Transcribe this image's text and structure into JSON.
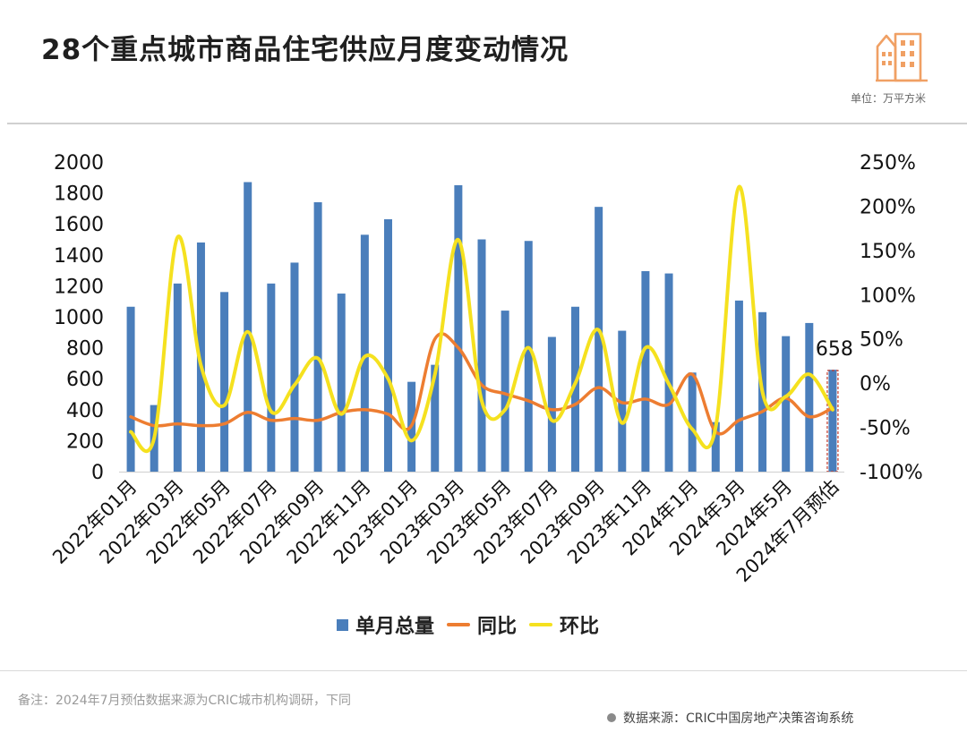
{
  "header": {
    "title": "28个重点城市商品住宅供应月度变动情况",
    "unit": "单位：万平方米"
  },
  "footer": {
    "note": "备注：2024年7月预估数据来源为CRIC城市机构调研，下同",
    "source": "数据来源：CRIC中国房地产决策咨询系统"
  },
  "colors": {
    "bar": "#4a7ebb",
    "yoy": "#ed7d31",
    "mom": "#f5e11f",
    "highlight": "#c0392b",
    "logo": "#f0a064"
  },
  "icons": {
    "logo": "buildings-icon"
  },
  "chart_data": {
    "type": "bar",
    "title": "28个重点城市商品住宅供应月度变动情况",
    "categories": [
      "2022年01月",
      "2022年02月",
      "2022年03月",
      "2022年04月",
      "2022年05月",
      "2022年06月",
      "2022年07月",
      "2022年08月",
      "2022年09月",
      "2022年10月",
      "2022年11月",
      "2022年12月",
      "2023年01月",
      "2023年02月",
      "2023年03月",
      "2023年04月",
      "2023年05月",
      "2023年06月",
      "2023年07月",
      "2023年08月",
      "2023年09月",
      "2023年10月",
      "2023年11月",
      "2023年12月",
      "2024年1月",
      "2024年2月",
      "2024年3月",
      "2024年4月",
      "2024年5月",
      "2024年6月",
      "2024年7月预估"
    ],
    "x_tick_labels": [
      "2022年01月",
      "2022年03月",
      "2022年05月",
      "2022年07月",
      "2022年09月",
      "2022年11月",
      "2023年01月",
      "2023年03月",
      "2023年05月",
      "2023年07月",
      "2023年09月",
      "2023年11月",
      "2024年1月",
      "2024年3月",
      "2024年5月",
      "2024年7月预估"
    ],
    "series": [
      {
        "name": "单月总量",
        "type": "bar",
        "axis": "left",
        "values": [
          1065,
          430,
          1215,
          1480,
          1160,
          1870,
          1215,
          1350,
          1740,
          1150,
          1530,
          1630,
          580,
          690,
          1850,
          1500,
          1040,
          1490,
          870,
          1065,
          1710,
          910,
          1295,
          1280,
          640,
          320,
          1105,
          1030,
          875,
          960,
          658
        ]
      },
      {
        "name": "同比",
        "type": "line",
        "axis": "right",
        "values": [
          -38,
          -48,
          -46,
          -48,
          -46,
          -33,
          -42,
          -40,
          -42,
          -33,
          -30,
          -35,
          -48,
          50,
          40,
          -2,
          -12,
          -20,
          -30,
          -24,
          -5,
          -22,
          -18,
          -24,
          10,
          -55,
          -42,
          -32,
          -17,
          -38,
          -28
        ]
      },
      {
        "name": "环比",
        "type": "line",
        "axis": "right",
        "values": [
          -55,
          -62,
          165,
          20,
          -25,
          58,
          -32,
          -2,
          28,
          -35,
          30,
          5,
          -65,
          10,
          162,
          -20,
          -30,
          40,
          -42,
          0,
          60,
          -45,
          40,
          -1,
          -52,
          -50,
          222,
          -10,
          -15,
          10,
          -30
        ]
      }
    ],
    "yleft_ticks": [
      "0",
      "200",
      "400",
      "600",
      "800",
      "1000",
      "1200",
      "1400",
      "1600",
      "1800",
      "2000"
    ],
    "yright_ticks": [
      "-100%",
      "-50%",
      "0%",
      "50%",
      "100%",
      "150%",
      "200%",
      "250%"
    ],
    "ylim_left": [
      0,
      2000
    ],
    "ylim_right": [
      -100,
      250
    ],
    "annotations": [
      {
        "text": "658",
        "category": "2024年7月预估"
      }
    ],
    "legend": [
      "单月总量",
      "同比",
      "环比"
    ],
    "legend_position": "bottom",
    "grid": false
  }
}
